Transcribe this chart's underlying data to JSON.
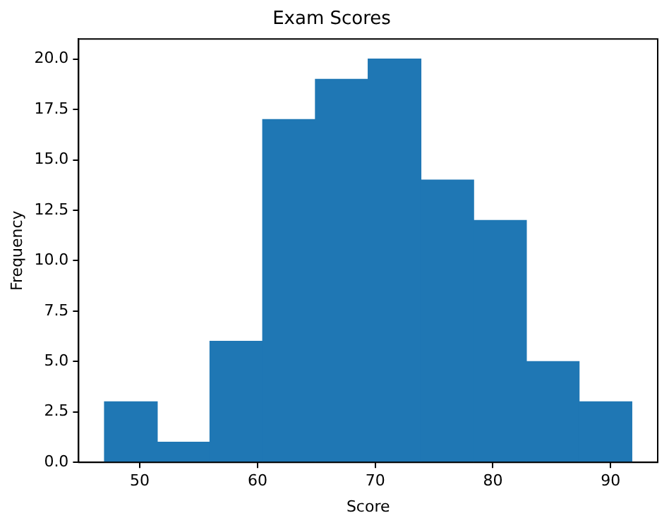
{
  "chart_data": {
    "type": "histogram",
    "title": "Exam Scores",
    "xlabel": "Score",
    "ylabel": "Frequency",
    "bins": [
      47.0,
      51.48,
      55.96,
      60.44,
      64.92,
      69.4,
      73.88,
      78.36,
      82.84,
      87.32,
      91.8
    ],
    "values": [
      3,
      1,
      6,
      17,
      19,
      20,
      14,
      12,
      5,
      3
    ],
    "color": "#1f77b4",
    "xlim": [
      44.8,
      94.0
    ],
    "xticks": [
      50,
      60,
      70,
      80,
      90
    ],
    "ylim": [
      0,
      21
    ],
    "yticks": [
      {
        "value": 0,
        "label": "0.0"
      },
      {
        "value": 2.5,
        "label": "2.5"
      },
      {
        "value": 5,
        "label": "5.0"
      },
      {
        "value": 7.5,
        "label": "7.5"
      },
      {
        "value": 10,
        "label": "10.0"
      },
      {
        "value": 12.5,
        "label": "12.5"
      },
      {
        "value": 15,
        "label": "15.0"
      },
      {
        "value": 17.5,
        "label": "17.5"
      },
      {
        "value": 20,
        "label": "20.0"
      }
    ],
    "grid": false,
    "legend": false
  }
}
